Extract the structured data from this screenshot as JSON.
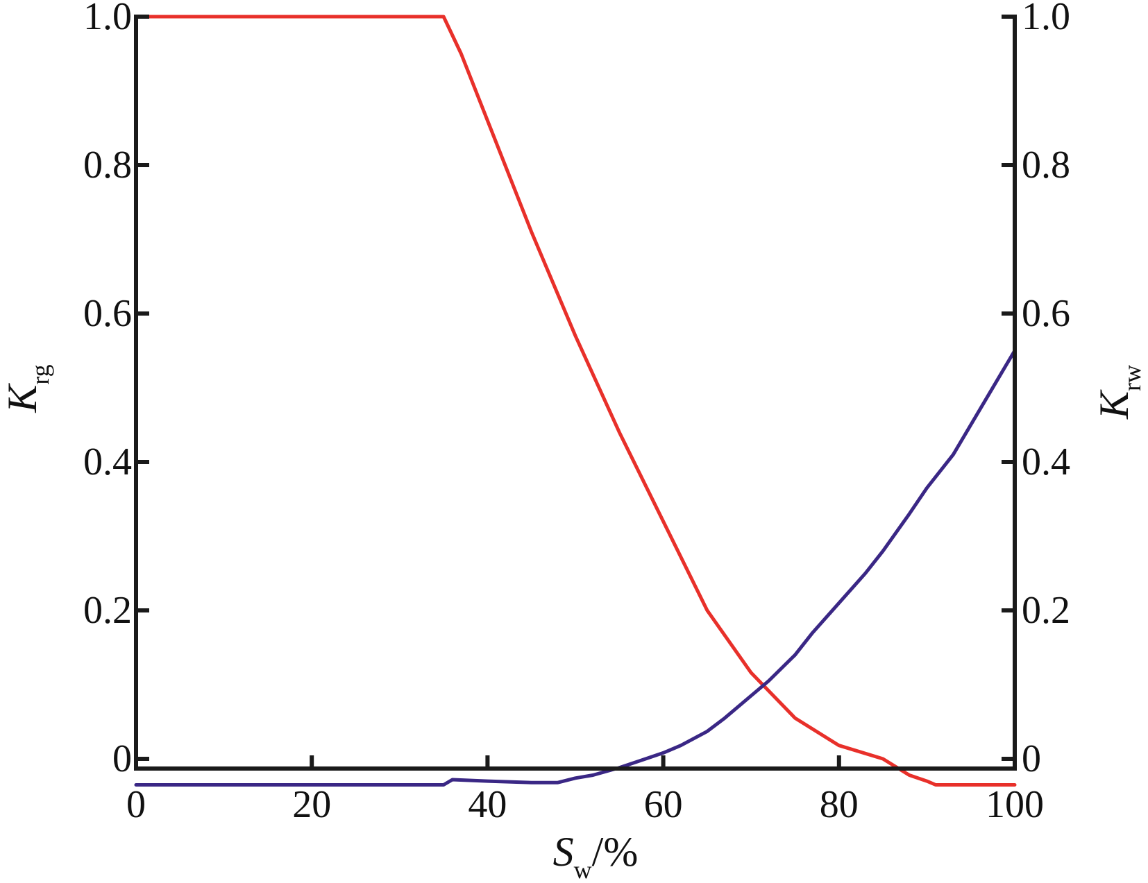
{
  "chart_data": {
    "type": "line",
    "xlabel": {
      "symbol": "S",
      "subscript": "w",
      "unit": "/%"
    },
    "ylabel_left": {
      "symbol": "K",
      "subscript": "rg"
    },
    "ylabel_right": {
      "symbol": "K",
      "subscript": "rw"
    },
    "xlim": [
      0,
      100
    ],
    "ylim_left": [
      0,
      1.0
    ],
    "ylim_right": [
      0,
      1.0
    ],
    "x_ticks": [
      "0",
      "20",
      "40",
      "60",
      "80",
      "100"
    ],
    "y_ticks_left": [
      "0",
      "0.2",
      "0.4",
      "0.6",
      "0.8",
      "1.0"
    ],
    "y_ticks_right": [
      "0",
      "0.2",
      "0.4",
      "0.6",
      "0.8",
      "1.0"
    ],
    "grid": false,
    "series": [
      {
        "axis": "left",
        "color": "#e8302a",
        "x": [
          0,
          35,
          37,
          40,
          45,
          50,
          55,
          60,
          65,
          70,
          75,
          80,
          85,
          88,
          90,
          91,
          95,
          100
        ],
        "y": [
          1.0,
          1.0,
          0.95,
          0.86,
          0.71,
          0.57,
          0.44,
          0.32,
          0.2,
          0.116,
          0.055,
          0.018,
          0.0,
          -0.022,
          -0.03,
          -0.035,
          -0.035,
          -0.035
        ]
      },
      {
        "axis": "right",
        "color": "#3a2785",
        "x": [
          0,
          35,
          36,
          40,
          45,
          48,
          50,
          52,
          55,
          57,
          60,
          62,
          65,
          67,
          70,
          72,
          75,
          77,
          80,
          83,
          85,
          88,
          90,
          93,
          95,
          97,
          99,
          100
        ],
        "y": [
          -0.035,
          -0.035,
          -0.028,
          -0.03,
          -0.032,
          -0.032,
          -0.026,
          -0.022,
          -0.012,
          -0.004,
          0.008,
          0.018,
          0.037,
          0.055,
          0.085,
          0.105,
          0.14,
          0.17,
          0.21,
          0.25,
          0.28,
          0.33,
          0.365,
          0.41,
          0.45,
          0.49,
          0.53,
          0.55
        ]
      }
    ]
  }
}
